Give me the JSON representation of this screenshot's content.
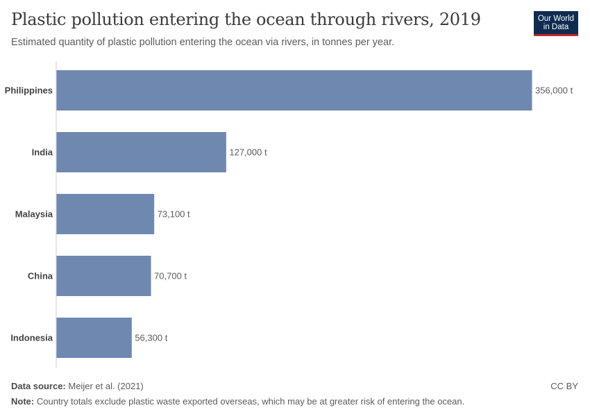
{
  "header": {
    "title": "Plastic pollution entering the ocean through rivers, 2019",
    "subtitle": "Estimated quantity of plastic pollution entering the ocean via rivers, in tonnes per year.",
    "logo_line1": "Our World",
    "logo_line2": "in Data"
  },
  "footer": {
    "source_label": "Data source:",
    "source_value": "Meijer et al. (2021)",
    "note_label": "Note:",
    "note_value": "Country totals exclude plastic waste exported overseas, which may be at greater risk of entering the ocean.",
    "license": "CC BY"
  },
  "colors": {
    "bar": "#6f88b0",
    "axis": "#cfcfcf",
    "label": "#444444",
    "value_label": "#5b5b5b",
    "logo_bg": "#0f2b4f",
    "logo_accent": "#c1272d"
  },
  "chart_data": {
    "type": "bar",
    "orientation": "horizontal",
    "categories": [
      "Philippines",
      "India",
      "Malaysia",
      "China",
      "Indonesia"
    ],
    "values": [
      356000,
      127000,
      73100,
      70700,
      56300
    ],
    "value_labels": [
      "356,000 t",
      "127,000 t",
      "73,100 t",
      "70,700 t",
      "56,300 t"
    ],
    "unit": "t",
    "title": "Plastic pollution entering the ocean through rivers, 2019",
    "xlabel": "",
    "ylabel": "",
    "xlim": [
      0,
      356000
    ],
    "grid": false
  }
}
